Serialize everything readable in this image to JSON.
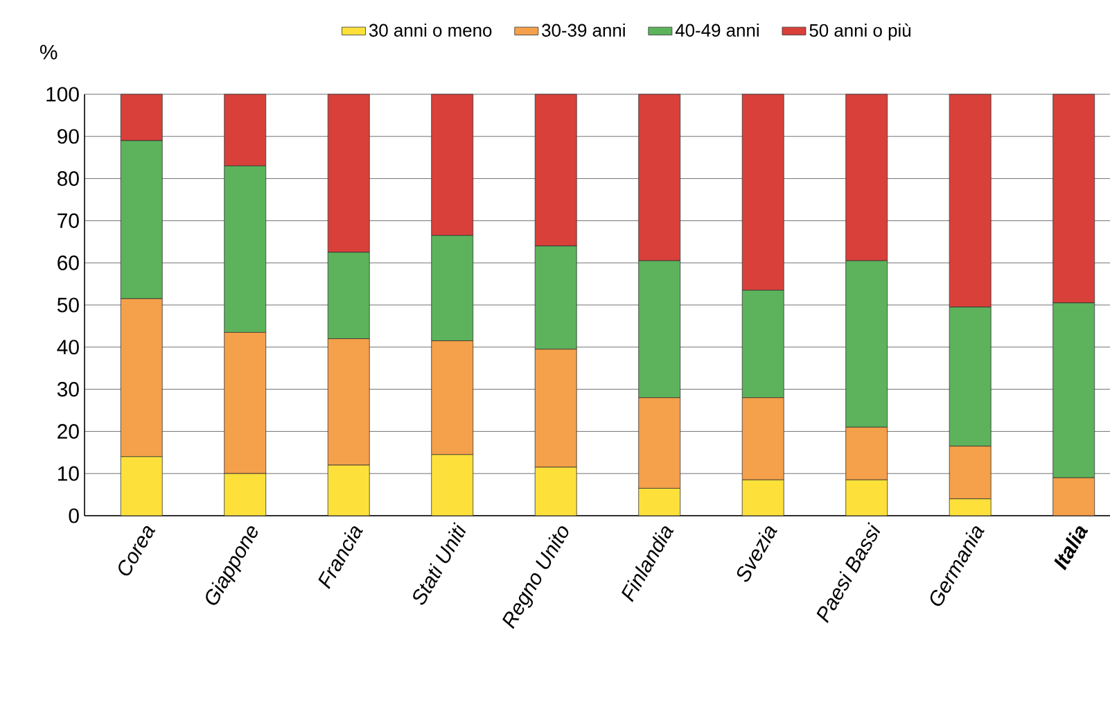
{
  "chart_data": {
    "type": "bar",
    "stacked": true,
    "ylabel": "%",
    "categories": [
      "Corea",
      "Giappone",
      "Francia",
      "Stati Uniti",
      "Regno Unito",
      "Finlandia",
      "Svezia",
      "Paesi Bassi",
      "Germania",
      "**Italia**"
    ],
    "series": [
      {
        "name": "30 anni o meno",
        "color": "#fde13a",
        "values": [
          14,
          10,
          12,
          14.5,
          11.5,
          6.5,
          8.5,
          8.5,
          4,
          0
        ]
      },
      {
        "name": "30-39 anni",
        "color": "#f5a04a",
        "values": [
          37.5,
          33.5,
          30,
          27,
          28,
          21.5,
          19.5,
          12.5,
          12.5,
          9
        ]
      },
      {
        "name": "40-49 anni",
        "color": "#5cb35c",
        "values": [
          37.5,
          39.5,
          20.5,
          25,
          24.5,
          32.5,
          25.5,
          39.5,
          33,
          41.5
        ]
      },
      {
        "name": "50 anni o più",
        "color": "#d9403a",
        "values": [
          11,
          17,
          37.5,
          33.5,
          36,
          39.5,
          46.5,
          39.5,
          50.5,
          49.5
        ]
      }
    ],
    "ylim": [
      0,
      100
    ],
    "yticks": [
      0,
      10,
      20,
      30,
      40,
      50,
      60,
      70,
      80,
      90,
      100
    ],
    "grid": "y",
    "legend": "top"
  }
}
